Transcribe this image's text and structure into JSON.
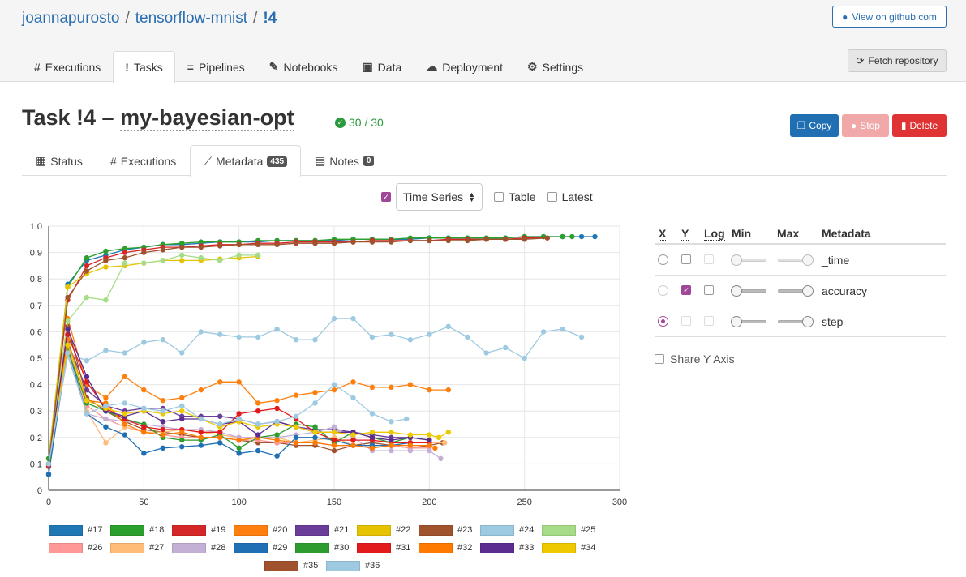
{
  "breadcrumb": {
    "owner": "joannapurosto",
    "project": "tensorflow-mnist",
    "task": "!4"
  },
  "header": {
    "github_label": "View on github.com",
    "fetch_label": "Fetch repository"
  },
  "nav": {
    "tabs": [
      {
        "icon": "#",
        "label": "Executions"
      },
      {
        "icon": "!",
        "label": "Tasks",
        "active": true
      },
      {
        "icon": "=",
        "label": "Pipelines"
      },
      {
        "icon": "✎",
        "label": "Notebooks"
      },
      {
        "icon": "▣",
        "label": "Data"
      },
      {
        "icon": "☁",
        "label": "Deployment"
      },
      {
        "icon": "⚙",
        "label": "Settings"
      }
    ]
  },
  "task": {
    "title_prefix": "Task !4 – ",
    "name": "my-bayesian-opt",
    "progress_label": "30 / 30"
  },
  "actions": {
    "copy": "Copy",
    "stop": "Stop",
    "delete": "Delete"
  },
  "subtabs": [
    {
      "label": "Status"
    },
    {
      "label": "Executions"
    },
    {
      "label": "Metadata",
      "badge": "435",
      "active": true
    },
    {
      "label": "Notes",
      "badge": "0"
    }
  ],
  "view_options": {
    "time_series_label": "Time Series",
    "time_series_checked": true,
    "table_label": "Table",
    "latest_label": "Latest"
  },
  "metadata_table": {
    "headers": {
      "x": "X",
      "y": "Y",
      "log": "Log",
      "min": "Min",
      "max": "Max",
      "metadata": "Metadata"
    },
    "rows": [
      {
        "name": "_time",
        "x_selected": false,
        "y_checked": false
      },
      {
        "name": "accuracy",
        "x_selected": false,
        "y_checked": true
      },
      {
        "name": "step",
        "x_selected": true,
        "y_checked": false
      }
    ],
    "share_y_label": "Share Y Axis"
  },
  "chart_data": {
    "type": "line",
    "xlim": [
      0,
      300
    ],
    "ylim": [
      0,
      1
    ],
    "xticks": [
      "0",
      "50",
      "100",
      "150",
      "200",
      "250",
      "300"
    ],
    "yticks": [
      "0",
      "0.1",
      "0.2",
      "0.3",
      "0.4",
      "0.5",
      "0.6",
      "0.7",
      "0.8",
      "0.9",
      "1.0"
    ],
    "grid": true,
    "legend": "bottom",
    "series": [
      {
        "name": "#17",
        "color": "#1f77b4",
        "x": [
          0,
          10,
          20,
          30,
          40,
          50,
          60,
          70,
          80,
          90,
          100,
          110,
          120,
          130,
          140,
          150,
          160,
          170,
          180,
          190,
          200,
          210,
          220,
          230,
          240,
          250,
          260,
          270,
          280,
          287
        ],
        "values": [
          0.06,
          0.78,
          0.87,
          0.89,
          0.91,
          0.92,
          0.93,
          0.93,
          0.935,
          0.94,
          0.94,
          0.94,
          0.945,
          0.945,
          0.945,
          0.945,
          0.95,
          0.95,
          0.95,
          0.95,
          0.955,
          0.955,
          0.955,
          0.955,
          0.955,
          0.96,
          0.96,
          0.96,
          0.96,
          0.96
        ]
      },
      {
        "name": "#18",
        "color": "#2ca02c",
        "x": [
          0,
          10,
          20,
          30,
          40,
          50,
          60,
          70,
          80,
          90,
          100,
          110,
          120,
          130,
          140,
          150,
          160,
          170,
          180,
          190,
          200,
          210,
          220,
          230,
          240,
          250,
          260,
          270,
          275
        ],
        "values": [
          0.12,
          0.77,
          0.88,
          0.905,
          0.915,
          0.92,
          0.93,
          0.935,
          0.94,
          0.94,
          0.94,
          0.945,
          0.945,
          0.945,
          0.945,
          0.95,
          0.95,
          0.95,
          0.95,
          0.955,
          0.955,
          0.955,
          0.955,
          0.955,
          0.955,
          0.96,
          0.96,
          0.96,
          0.96
        ]
      },
      {
        "name": "#19",
        "color": "#d62728",
        "x": [
          0,
          10,
          20,
          30,
          40,
          50,
          60,
          70,
          80,
          90,
          100,
          110,
          120,
          130,
          140,
          150,
          160,
          170,
          180,
          190,
          200,
          210,
          220,
          230,
          240,
          250,
          262
        ],
        "values": [
          0.09,
          0.72,
          0.85,
          0.88,
          0.9,
          0.91,
          0.92,
          0.92,
          0.925,
          0.93,
          0.93,
          0.935,
          0.935,
          0.94,
          0.94,
          0.94,
          0.94,
          0.945,
          0.945,
          0.945,
          0.945,
          0.95,
          0.95,
          0.95,
          0.95,
          0.955,
          0.955
        ]
      },
      {
        "name": "#20",
        "color": "#ff7f0e",
        "x": [
          0,
          10,
          20,
          30,
          40,
          50,
          60,
          70,
          80,
          90,
          100,
          110,
          120,
          130,
          140,
          150,
          160,
          170,
          180,
          190,
          200,
          210
        ],
        "values": [
          0.1,
          0.65,
          0.4,
          0.35,
          0.43,
          0.38,
          0.34,
          0.35,
          0.38,
          0.41,
          0.41,
          0.33,
          0.34,
          0.36,
          0.37,
          0.38,
          0.41,
          0.39,
          0.39,
          0.4,
          0.38,
          0.38
        ]
      },
      {
        "name": "#21",
        "color": "#6a3d9a",
        "x": [
          0,
          10,
          20,
          30,
          40,
          50,
          60,
          70,
          80,
          90,
          100,
          110,
          120,
          130,
          140,
          150,
          160,
          170,
          180,
          190,
          200
        ],
        "values": [
          0.1,
          0.56,
          0.38,
          0.32,
          0.3,
          0.31,
          0.31,
          0.28,
          0.28,
          0.28,
          0.27,
          0.25,
          0.26,
          0.24,
          0.23,
          0.23,
          0.22,
          0.21,
          0.2,
          0.2,
          0.19
        ]
      },
      {
        "name": "#22",
        "color": "#e6c300",
        "x": [
          0,
          10,
          20,
          30,
          40,
          50,
          60,
          70,
          80,
          90,
          100,
          110
        ],
        "values": [
          0.12,
          0.77,
          0.82,
          0.845,
          0.85,
          0.86,
          0.87,
          0.87,
          0.87,
          0.875,
          0.88,
          0.885
        ]
      },
      {
        "name": "#23",
        "color": "#a0522d",
        "x": [
          0,
          10,
          20,
          30,
          40,
          50,
          60,
          70,
          80,
          90,
          100,
          110,
          120,
          130,
          140,
          150,
          160,
          170,
          180,
          190,
          200,
          207
        ],
        "values": [
          0.1,
          0.62,
          0.35,
          0.3,
          0.26,
          0.23,
          0.22,
          0.21,
          0.2,
          0.2,
          0.19,
          0.18,
          0.18,
          0.17,
          0.17,
          0.15,
          0.17,
          0.18,
          0.17,
          0.16,
          0.17,
          0.18
        ]
      },
      {
        "name": "#24",
        "color": "#9ecae1",
        "x": [
          10,
          20,
          30,
          40,
          50,
          60,
          70,
          80,
          90,
          100,
          110,
          120,
          130,
          140,
          150,
          160,
          170,
          180,
          190,
          200,
          210,
          220,
          230,
          240,
          250,
          260,
          270,
          280
        ],
        "values": [
          0.52,
          0.49,
          0.53,
          0.52,
          0.56,
          0.57,
          0.52,
          0.6,
          0.59,
          0.58,
          0.58,
          0.61,
          0.57,
          0.57,
          0.65,
          0.65,
          0.58,
          0.59,
          0.57,
          0.59,
          0.62,
          0.58,
          0.52,
          0.54,
          0.5,
          0.6,
          0.61,
          0.58
        ]
      },
      {
        "name": "#25",
        "color": "#a6dc87",
        "x": [
          0,
          10,
          20,
          30,
          40,
          50,
          60,
          70,
          80,
          90,
          100,
          110
        ],
        "values": [
          0.12,
          0.64,
          0.73,
          0.72,
          0.86,
          0.86,
          0.87,
          0.89,
          0.88,
          0.87,
          0.89,
          0.89
        ]
      },
      {
        "name": "#26",
        "color": "#ff9896",
        "x": [
          0,
          10,
          20,
          30,
          40,
          50,
          60,
          70,
          80,
          90,
          100,
          110,
          120,
          130,
          140,
          150,
          160,
          170,
          180,
          190,
          200
        ],
        "values": [
          0.1,
          0.53,
          0.32,
          0.27,
          0.24,
          0.22,
          0.21,
          0.2,
          0.2,
          0.2,
          0.19,
          0.19,
          0.18,
          0.18,
          0.18,
          0.17,
          0.17,
          0.17,
          0.17,
          0.16,
          0.16
        ]
      },
      {
        "name": "#27",
        "color": "#ffbb78",
        "x": [
          0,
          10,
          20,
          30,
          40,
          50,
          60,
          70,
          80,
          90,
          100,
          110,
          120,
          130,
          140,
          150,
          160,
          170,
          180,
          190,
          200,
          208
        ],
        "values": [
          0.1,
          0.55,
          0.3,
          0.18,
          0.24,
          0.22,
          0.22,
          0.23,
          0.22,
          0.21,
          0.2,
          0.2,
          0.2,
          0.18,
          0.19,
          0.2,
          0.17,
          0.17,
          0.17,
          0.18,
          0.18,
          0.18
        ]
      },
      {
        "name": "#28",
        "color": "#c5b0d5",
        "x": [
          0,
          10,
          20,
          30,
          40,
          50,
          60,
          70,
          80,
          90,
          100,
          110,
          120,
          130,
          140,
          150,
          160,
          170,
          180,
          190,
          200,
          206
        ],
        "values": [
          0.1,
          0.51,
          0.29,
          0.27,
          0.26,
          0.25,
          0.24,
          0.23,
          0.23,
          0.22,
          0.2,
          0.2,
          0.2,
          0.21,
          0.22,
          0.24,
          0.2,
          0.15,
          0.15,
          0.15,
          0.15,
          0.12
        ]
      },
      {
        "name": "#29",
        "color": "#1f6fb5",
        "x": [
          0,
          10,
          20,
          30,
          40,
          50,
          60,
          70,
          80,
          90,
          100,
          110,
          120,
          130,
          140,
          150,
          160,
          170,
          180,
          190,
          200
        ],
        "values": [
          0.06,
          0.54,
          0.29,
          0.24,
          0.21,
          0.14,
          0.16,
          0.165,
          0.17,
          0.18,
          0.14,
          0.15,
          0.13,
          0.2,
          0.2,
          0.19,
          0.17,
          0.17,
          0.17,
          0.18,
          0.18
        ]
      },
      {
        "name": "#30",
        "color": "#2e9b2e",
        "x": [
          0,
          10,
          20,
          30,
          40,
          50,
          60,
          70,
          80,
          90,
          100,
          110,
          120,
          130,
          140,
          150,
          160,
          170,
          180,
          190,
          200
        ],
        "values": [
          0.12,
          0.53,
          0.33,
          0.3,
          0.27,
          0.25,
          0.2,
          0.19,
          0.19,
          0.21,
          0.16,
          0.2,
          0.21,
          0.25,
          0.24,
          0.18,
          0.22,
          0.2,
          0.18,
          0.2,
          0.19
        ]
      },
      {
        "name": "#31",
        "color": "#e31a1c",
        "x": [
          0,
          10,
          20,
          30,
          40,
          50,
          60,
          70,
          80,
          90,
          100,
          110,
          120,
          130,
          140,
          150,
          160,
          170,
          180,
          190,
          200
        ],
        "values": [
          0.1,
          0.59,
          0.41,
          0.31,
          0.27,
          0.24,
          0.23,
          0.23,
          0.22,
          0.22,
          0.29,
          0.3,
          0.31,
          0.27,
          0.22,
          0.19,
          0.19,
          0.19,
          0.18,
          0.18,
          0.18
        ]
      },
      {
        "name": "#32",
        "color": "#ff7a00",
        "x": [
          0,
          10,
          20,
          30,
          40,
          50,
          60,
          70,
          80,
          90,
          100,
          110,
          120,
          130,
          140,
          150,
          160,
          170,
          180,
          190,
          200,
          203
        ],
        "values": [
          0.1,
          0.57,
          0.34,
          0.33,
          0.25,
          0.22,
          0.21,
          0.22,
          0.2,
          0.2,
          0.19,
          0.2,
          0.19,
          0.18,
          0.18,
          0.17,
          0.17,
          0.16,
          0.17,
          0.17,
          0.17,
          0.16
        ]
      },
      {
        "name": "#33",
        "color": "#5b2d90",
        "x": [
          0,
          10,
          20,
          30,
          40,
          50,
          60,
          70,
          80,
          90,
          100,
          110,
          120,
          130,
          140,
          150,
          160,
          170,
          180,
          190,
          200
        ],
        "values": [
          0.1,
          0.61,
          0.43,
          0.3,
          0.28,
          0.3,
          0.26,
          0.27,
          0.27,
          0.25,
          0.26,
          0.21,
          0.26,
          0.24,
          0.22,
          0.22,
          0.22,
          0.2,
          0.19,
          0.2,
          0.19
        ]
      },
      {
        "name": "#34",
        "color": "#eec900",
        "x": [
          0,
          10,
          20,
          30,
          40,
          50,
          60,
          70,
          80,
          90,
          100,
          110,
          120,
          130,
          140,
          150,
          160,
          170,
          180,
          190,
          200,
          205,
          210
        ],
        "values": [
          0.1,
          0.55,
          0.34,
          0.31,
          0.29,
          0.3,
          0.29,
          0.3,
          0.27,
          0.24,
          0.26,
          0.24,
          0.25,
          0.24,
          0.22,
          0.22,
          0.21,
          0.22,
          0.22,
          0.21,
          0.21,
          0.2,
          0.22
        ]
      },
      {
        "name": "#35",
        "color": "#a0522d",
        "x": [
          0,
          10,
          20,
          30,
          40,
          50,
          60,
          70,
          80,
          90,
          100,
          110,
          120,
          130,
          140,
          150,
          160,
          170,
          180,
          190,
          200,
          210,
          220,
          230,
          240,
          250,
          262
        ],
        "values": [
          0.1,
          0.73,
          0.83,
          0.87,
          0.88,
          0.9,
          0.91,
          0.92,
          0.92,
          0.925,
          0.93,
          0.93,
          0.93,
          0.935,
          0.935,
          0.935,
          0.94,
          0.94,
          0.94,
          0.945,
          0.945,
          0.945,
          0.945,
          0.95,
          0.95,
          0.95,
          0.955
        ]
      },
      {
        "name": "#36",
        "color": "#9ecae1",
        "x": [
          0,
          10,
          20,
          30,
          40,
          50,
          60,
          70,
          80,
          90,
          100,
          110,
          120,
          130,
          140,
          150,
          160,
          170,
          180,
          188
        ],
        "values": [
          0.1,
          0.52,
          0.29,
          0.32,
          0.33,
          0.31,
          0.3,
          0.32,
          0.27,
          0.25,
          0.27,
          0.25,
          0.26,
          0.28,
          0.33,
          0.4,
          0.35,
          0.29,
          0.26,
          0.27
        ]
      }
    ]
  }
}
